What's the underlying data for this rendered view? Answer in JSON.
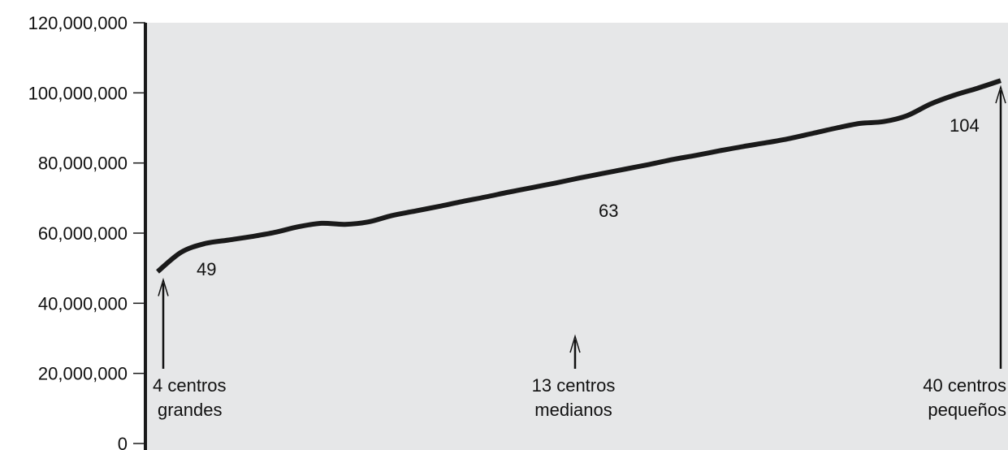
{
  "chart_data": {
    "type": "line",
    "title": "",
    "xlabel": "",
    "ylabel": "",
    "ylim": [
      0,
      120000000
    ],
    "yticks": [
      {
        "value": 0,
        "label": "0"
      },
      {
        "value": 20000000,
        "label": "20,000,000"
      },
      {
        "value": 40000000,
        "label": "40,000,000"
      },
      {
        "value": 60000000,
        "label": "60,000,000"
      },
      {
        "value": 80000000,
        "label": "80,000,000"
      },
      {
        "value": 100000000,
        "label": "100,000,000"
      },
      {
        "value": 120000000,
        "label": "120,000,000"
      }
    ],
    "xlim": [
      4,
      40
    ],
    "x_axis_visible": false,
    "grid": false,
    "colors": {
      "plot_background": "#e6e7e8",
      "line": "#1a1a1a",
      "axis": "#1a1a1a"
    },
    "series": [
      {
        "x": [
          4,
          5,
          6,
          7,
          8,
          9,
          10,
          11,
          12,
          13,
          14,
          15,
          16,
          17,
          18,
          19,
          20,
          21,
          22,
          23,
          24,
          25,
          26,
          27,
          28,
          29,
          30,
          31,
          32,
          33,
          34,
          35,
          36,
          37,
          38,
          39,
          40
        ],
        "values": [
          49000000,
          54500000,
          57000000,
          58000000,
          59000000,
          60200000,
          61800000,
          62800000,
          62500000,
          63200000,
          65000000,
          66300000,
          67600000,
          69000000,
          70300000,
          71700000,
          73000000,
          74300000,
          75700000,
          77000000,
          78300000,
          79600000,
          81000000,
          82200000,
          83500000,
          84700000,
          85800000,
          87000000,
          88500000,
          90000000,
          91300000,
          91800000,
          93500000,
          96800000,
          99300000,
          101300000,
          103500000
        ]
      }
    ],
    "annotations": [
      {
        "x": 4,
        "y": 49000000,
        "value_label": "49",
        "caption": [
          "4 centros",
          "grandes"
        ]
      },
      {
        "x": 13,
        "y": 63000000,
        "value_label": "63",
        "caption": [
          "13 centros",
          "medianos"
        ]
      },
      {
        "x": 40,
        "y": 104000000,
        "value_label": "104",
        "caption": [
          "40 centros",
          "pequeños"
        ]
      }
    ]
  }
}
